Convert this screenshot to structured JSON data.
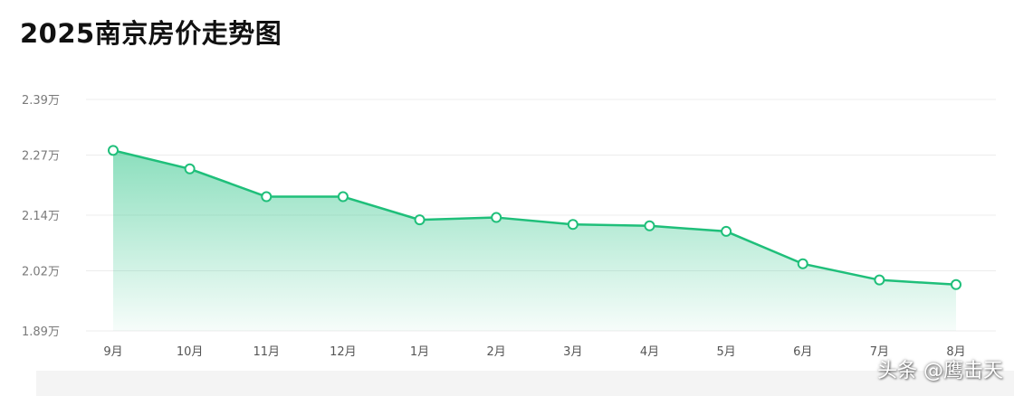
{
  "chart_data": {
    "type": "area",
    "title": "2025南京房价走势图",
    "categories": [
      "9月",
      "10月",
      "11月",
      "12月",
      "1月",
      "2月",
      "3月",
      "4月",
      "5月",
      "6月",
      "7月",
      "8月"
    ],
    "series": [
      {
        "values": [
          2.28,
          2.24,
          2.18,
          2.18,
          2.13,
          2.135,
          2.12,
          2.117,
          2.105,
          2.035,
          2.0,
          1.99
        ]
      }
    ],
    "y_ticks": [
      1.89,
      2.02,
      2.14,
      2.27,
      2.39
    ],
    "y_tick_labels": [
      "1.89万",
      "2.02万",
      "2.14万",
      "2.27万",
      "2.39万"
    ],
    "ylim": [
      1.89,
      2.39
    ],
    "grid": true,
    "line_color": "#1fbf7a"
  },
  "watermark": "头条 @鹰击天"
}
